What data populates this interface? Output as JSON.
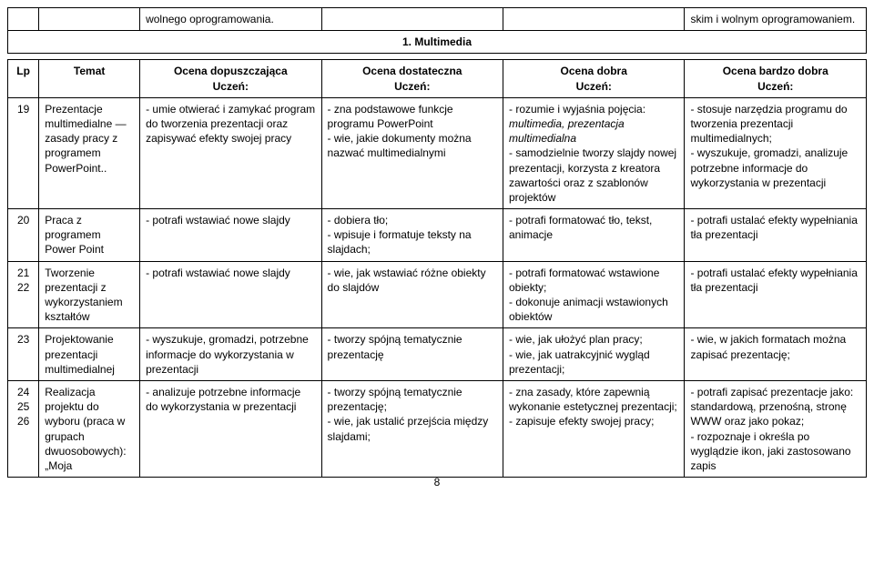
{
  "top": {
    "row0_col3": "wolnego oprogramowania.",
    "row0_col6": "skim i wolnym oprogramowaniem.",
    "section_title": "1. Multimedia"
  },
  "headers": {
    "lp": "Lp",
    "temat": "Temat",
    "g1": "Ocena dopuszczająca\nUczeń:",
    "g2": "Ocena dostateczna\nUczeń:",
    "g3": "Ocena dobra\nUczeń:",
    "g4": "Ocena bardzo dobra\nUczeń:"
  },
  "rows": [
    {
      "lp": "19",
      "temat": "Prezentacje multimedialne — zasady pracy z programem PowerPoint..",
      "c1": "- umie otwierać i zamykać program do tworzenia prezentacji oraz zapisywać efekty swojej pracy",
      "c2": "- zna podstawowe funkcje programu PowerPoint\n- wie, jakie dokumenty można nazwać multimedialnymi",
      "c3": "- rozumie i wyjaśnia pojęcia: multimedia, prezentacja multimedialna\n- samodzielnie tworzy slajdy nowej prezentacji, korzysta z kreatora zawartości oraz z szablonów projektów",
      "c4": "- stosuje narzędzia programu do tworzenia prezentacji multimedialnych;\n- wyszukuje, gromadzi, analizuje potrzebne informacje do wykorzystania w prezentacji"
    },
    {
      "lp": "20",
      "temat": "Praca z programem Power Point",
      "c1": "- potrafi wstawiać nowe slajdy",
      "c2": "- dobiera tło;\n- wpisuje i formatuje teksty na slajdach;",
      "c3": "- potrafi formatować tło, tekst, animacje",
      "c4": "- potrafi ustalać efekty wypełniania tła prezentacji"
    },
    {
      "lp": "21\n22",
      "temat": "Tworzenie prezentacji z wykorzystaniem kształtów",
      "c1": "- potrafi wstawiać nowe slajdy",
      "c2": "- wie, jak wstawiać różne obiekty do slajdów",
      "c3": "- potrafi formatować wstawione obiekty;\n- dokonuje animacji wstawionych obiektów",
      "c4": "- potrafi ustalać efekty wypełniania tła prezentacji"
    },
    {
      "lp": "23",
      "temat": "Projektowanie prezentacji multimedialnej",
      "c1": "- wyszukuje, gromadzi, potrzebne informacje do wykorzystania w prezentacji",
      "c2": "- tworzy spójną tematycznie prezentację",
      "c3": "- wie, jak ułożyć plan pracy;\n- wie, jak uatrakcyjnić wygląd prezentacji;",
      "c4": "- wie, w jakich formatach można zapisać prezentację;"
    },
    {
      "lp": "24\n25\n26",
      "temat": "Realizacja projektu do wyboru (praca w grupach dwuosobowych): „Moja",
      "c1": "- analizuje potrzebne informacje do wykorzystania w prezentacji",
      "c2": "- tworzy spójną tematycznie prezentację;\n- wie, jak ustalić przejścia między slajdami;",
      "c3": "- zna zasady, które zapewnią wykonanie estetycznej prezentacji;\n- zapisuje efekty swojej pracy;",
      "c4": "- potrafi zapisać prezentacje jako: standardową, przenośną, stronę WWW oraz jako pokaz;\n- rozpoznaje i określa po wyglądzie ikon, jaki zastosowano zapis"
    }
  ],
  "page_number": "8",
  "italics": {
    "r0c3_italic": "multimedia, prezentacja multimedialna"
  }
}
